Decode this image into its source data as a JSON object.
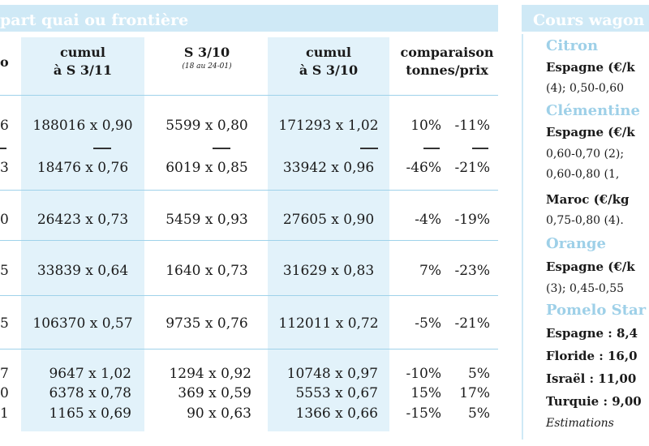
{
  "left_title": "part quai ou frontière",
  "right_title": "Cours wagon",
  "col_headers": [
    {
      "line1": "o",
      "line2": "",
      "sub": ""
    },
    {
      "line1": "cumul",
      "line2": "à S 3/11",
      "sub": ""
    },
    {
      "line1": "S 3/10",
      "line2": "",
      "sub": "(18 au 24-01)"
    },
    {
      "line1": "cumul",
      "line2": "à S 3/10",
      "sub": ""
    },
    {
      "line1": "comparaison",
      "line2": "tonnes/prix",
      "sub": ""
    }
  ],
  "rows": [
    {
      "c0": "6",
      "c1": "188016 x 0,90",
      "c2": "5599 x 0,80",
      "c3": "171293 x 1,02",
      "t": "10%",
      "p": "-11%"
    },
    {
      "c0": "3",
      "c1": "18476 x 0,76",
      "c2": "6019 x 0,85",
      "c3": "33942 x 0,96",
      "t": "-46%",
      "p": "-21%"
    },
    {
      "c0": "0",
      "c1": "26423 x 0,73",
      "c2": "5459 x 0,93",
      "c3": "27605 x 0,90",
      "t": "-4%",
      "p": "-19%"
    },
    {
      "c0": "5",
      "c1": "33839 x 0,64",
      "c2": "1640 x 0,73",
      "c3": "31629 x 0,83",
      "t": "7%",
      "p": "-23%"
    },
    {
      "c0": "5",
      "c1": "106370 x 0,57",
      "c2": "9735 x 0,76",
      "c3": "112011 x 0,72",
      "t": "-5%",
      "p": "-21%"
    },
    {
      "c0": "7",
      "c1": "9647 x 1,02",
      "c2": "1294 x 0,92",
      "c3": "10748 x 0,97",
      "t": "-10%",
      "p": "5%"
    },
    {
      "c0": "0",
      "c1": "6378 x 0,78",
      "c2": "369 x 0,59",
      "c3": "5553 x 0,67",
      "t": "15%",
      "p": "17%"
    },
    {
      "c0": "1",
      "c1": "1165 x 0,69",
      "c2": "90 x 0,63",
      "c3": "1366 x 0,66",
      "t": "-15%",
      "p": "5%"
    }
  ],
  "right": {
    "citron": "Citron",
    "citron_l1": "Espagne (€/k",
    "citron_l2": "(4); 0,50-0,60",
    "clementine": "Clémentine",
    "clem_l1": "Espagne (€/k",
    "clem_l2": "0,60-0,70 (2);",
    "clem_l3": "0,60-0,80 (1,",
    "clem_l4": "Maroc (€/kg",
    "clem_l5": "0,75-0,80 (4).",
    "orange": "Orange",
    "orange_l1": "Espagne (€/k",
    "orange_l2": "(3); 0,45-0,55",
    "pomelo": "Pomelo Star",
    "pom_l1": "Espagne : 8,4",
    "pom_l2": "Floride : 16,0",
    "pom_l3": "Israël : 11,00",
    "pom_l4": "Turquie : 9,00",
    "estim": "Estimations"
  },
  "colors": {
    "accent_light": "#cfe9f6",
    "shade": "#e2f2fa",
    "product": "#9ed0e8"
  }
}
